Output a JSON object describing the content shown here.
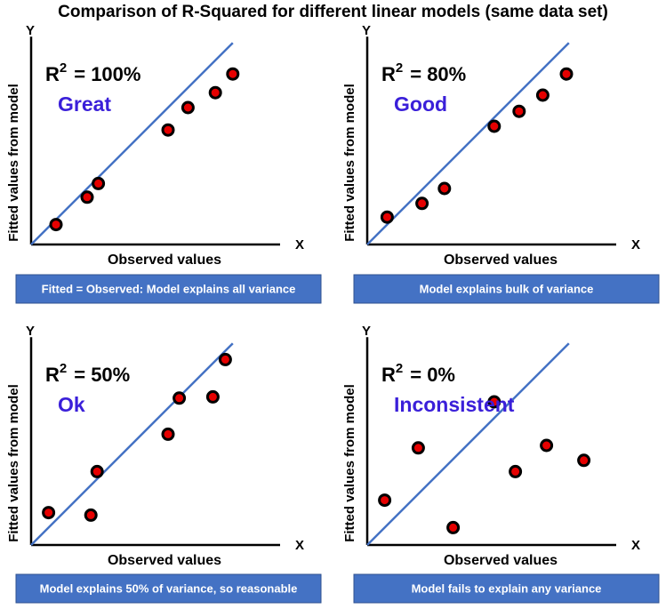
{
  "title": "Comparison of R-Squared for different linear models (same data set)",
  "colors": {
    "fit_line": "#4472c4",
    "point_fill": "#e60000",
    "rating_text": "#3a1fd9",
    "caption_bg": "#4472c4"
  },
  "chart_data": [
    {
      "type": "scatter",
      "y_axis_letter": "Y",
      "x_axis_letter": "X",
      "xlabel": "Observed values",
      "ylabel": "Fitted values from model",
      "r2_base": "R",
      "r2_exp": "2",
      "r2_value": "= 100%",
      "rating": "Great",
      "caption": "Fitted = Observed: Model explains all variance",
      "points": [
        [
          1.0,
          0.8
        ],
        [
          2.25,
          1.9
        ],
        [
          2.7,
          2.45
        ],
        [
          5.5,
          4.6
        ],
        [
          6.3,
          5.5
        ],
        [
          7.4,
          6.1
        ],
        [
          8.1,
          6.85
        ]
      ]
    },
    {
      "type": "scatter",
      "y_axis_letter": "Y",
      "x_axis_letter": "X",
      "xlabel": "Observed values",
      "ylabel": "Fitted values from model",
      "r2_base": "R",
      "r2_exp": "2",
      "r2_value": "= 80%",
      "rating": "Good",
      "caption": "Model explains bulk of variance",
      "points": [
        [
          0.8,
          1.1
        ],
        [
          2.2,
          1.65
        ],
        [
          3.1,
          2.25
        ],
        [
          5.1,
          4.75
        ],
        [
          6.1,
          5.35
        ],
        [
          7.05,
          6.0
        ],
        [
          8.0,
          6.85
        ]
      ]
    },
    {
      "type": "scatter",
      "y_axis_letter": "Y",
      "x_axis_letter": "X",
      "xlabel": "Observed values",
      "ylabel": "Fitted values from model",
      "r2_base": "R",
      "r2_exp": "2",
      "r2_value": "= 50%",
      "rating": "Ok",
      "caption": "Model explains 50% of variance, so reasonable",
      "points": [
        [
          0.7,
          1.3
        ],
        [
          2.4,
          1.2
        ],
        [
          2.65,
          2.95
        ],
        [
          5.5,
          4.45
        ],
        [
          5.95,
          5.9
        ],
        [
          7.3,
          5.95
        ],
        [
          7.8,
          7.45
        ]
      ]
    },
    {
      "type": "scatter",
      "y_axis_letter": "Y",
      "x_axis_letter": "X",
      "xlabel": "Observed values",
      "ylabel": "Fitted values from model",
      "r2_base": "R",
      "r2_exp": "2",
      "r2_value": "= 0%",
      "rating": "Inconsistent",
      "caption": "Model fails to explain any variance",
      "points": [
        [
          0.7,
          1.8
        ],
        [
          2.05,
          3.9
        ],
        [
          3.45,
          0.7
        ],
        [
          5.1,
          5.75
        ],
        [
          5.95,
          2.95
        ],
        [
          7.2,
          4.0
        ],
        [
          8.7,
          3.4
        ]
      ]
    }
  ]
}
